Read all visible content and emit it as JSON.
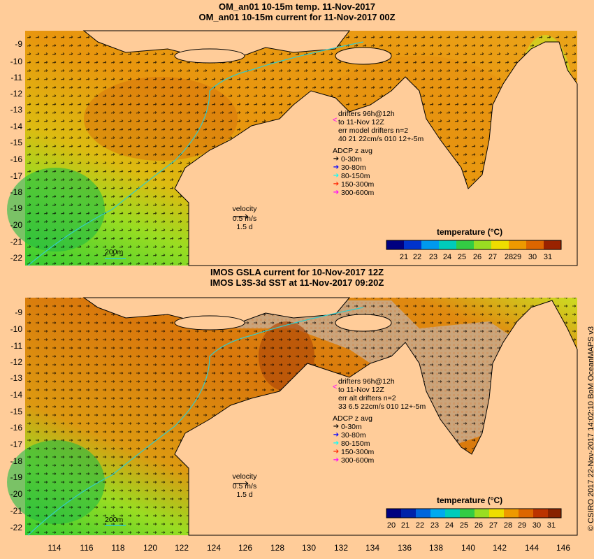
{
  "panels": [
    {
      "title1": "OM_an01 10-15m temp. 11-Nov-2017",
      "title2": "OM_an01 10-15m current for 11-Nov-2017 00Z",
      "drifters_lines": [
        "drifters 96h@12h",
        "to 11-Nov 12Z",
        "err model drifters n=2",
        "40 21 22cm/s 010 12+-5m"
      ],
      "adcp_title": "ADCP z avg",
      "adcp_items": [
        {
          "label": "0-30m",
          "color": "#000000"
        },
        {
          "label": "30-80m",
          "color": "#0000ff"
        },
        {
          "label": "80-150m",
          "color": "#00ffff"
        },
        {
          "label": "150-300m",
          "color": "#ff2200"
        },
        {
          "label": "300-600m",
          "color": "#ff00ff"
        }
      ],
      "velocity_lines": [
        "velocity",
        "0.5 m/s",
        "1.5 d"
      ],
      "scale_label": "200m",
      "colorbar_title": "temperature (°C)",
      "colorbar_ticks": [
        "21",
        "22",
        "23",
        "24",
        "25",
        "26",
        "27",
        "28",
        "29",
        "30",
        "31"
      ],
      "y_ticks": [
        "-9",
        "-10",
        "-11",
        "-12",
        "-13",
        "-14",
        "-15",
        "-16",
        "-17",
        "-18",
        "-19",
        "-20",
        "-21",
        "-22"
      ]
    },
    {
      "title1": "IMOS GSLA current for 10-Nov-2017 12Z",
      "title2": "IMOS L3S-3d SST at 11-Nov-2017 09:20Z",
      "drifters_lines": [
        "drifters 96h@12h",
        "to 11-Nov 12Z",
        "err alt drifters n=2",
        "33 6.5 22cm/s 010 12+-5m"
      ],
      "adcp_title": "ADCP z avg",
      "adcp_items": [
        {
          "label": "0-30m",
          "color": "#000000"
        },
        {
          "label": "30-80m",
          "color": "#0000ff"
        },
        {
          "label": "80-150m",
          "color": "#00ffff"
        },
        {
          "label": "150-300m",
          "color": "#ff2200"
        },
        {
          "label": "300-600m",
          "color": "#ff00ff"
        }
      ],
      "velocity_lines": [
        "velocity",
        "0.5 m/s",
        "1.5 d"
      ],
      "scale_label": "200m",
      "colorbar_title": "temperature (°C)",
      "colorbar_ticks": [
        "20",
        "21",
        "22",
        "23",
        "24",
        "25",
        "26",
        "27",
        "28",
        "29",
        "30",
        "31"
      ],
      "y_ticks": [
        "-9",
        "-10",
        "-11",
        "-12",
        "-13",
        "-14",
        "-15",
        "-16",
        "-17",
        "-18",
        "-19",
        "-20",
        "-21",
        "-22"
      ]
    }
  ],
  "x_ticks": [
    "114",
    "116",
    "118",
    "120",
    "122",
    "124",
    "126",
    "128",
    "130",
    "132",
    "134",
    "136",
    "138",
    "140",
    "142",
    "144",
    "146"
  ],
  "credit": "© CSIRO 2017  22-Nov-2017 14:02:10 BoM OceanMAPS v3",
  "colors": {
    "background": "#ffcc99",
    "land": "#ffcc99",
    "no_data": "#c8a887",
    "coastline": "#000000",
    "isobath": "#33cccc"
  }
}
